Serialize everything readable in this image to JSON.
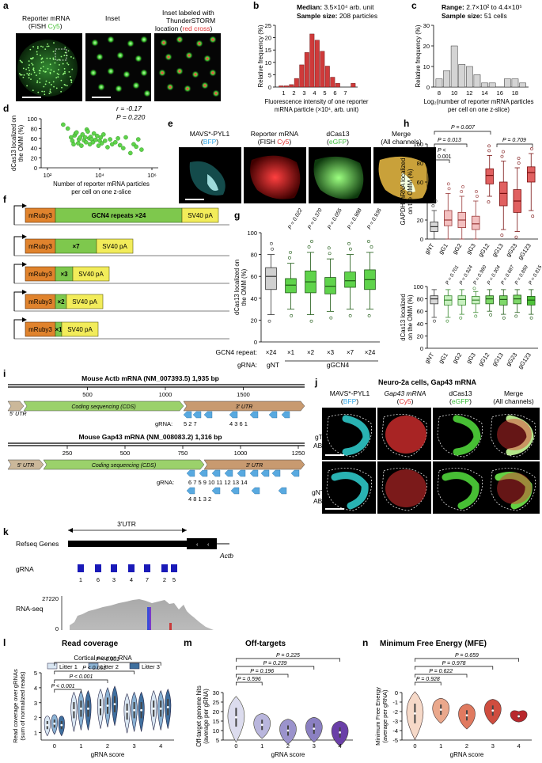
{
  "colors": {
    "red": "#cf3a3a",
    "green": "#5fd34b",
    "blue": "#1e5fa8",
    "grey": "#cfcfcf",
    "violet": "#8b62b6"
  },
  "panel_a": {
    "letter": "a",
    "title_line1": "Reporter mRNA",
    "title_line2_pre": "(FISH ",
    "title_line2_cy": "Cy5",
    "title_line2_post": ")",
    "inset": "Inset",
    "right_line1": "Inset labeled with",
    "right_line2": "ThunderSTORM",
    "right_line3_pre": "location (",
    "right_line3_red": "red cross",
    "right_line3_post": ")"
  },
  "panel_b": {
    "letter": "b",
    "median": "Median:",
    "median_value": "3.5×10⁴ arb. unit",
    "sample": "Sample size:",
    "sample_value": "208 particles"
  },
  "panel_c": {
    "letter": "c",
    "range": "Range:",
    "range_value": "2.7×10² to 4.4×10⁵",
    "sample": "Sample size:",
    "sample_value": "51 cells"
  },
  "panel_d": {
    "letter": "d",
    "r": "r = -0.17",
    "p": "P = 0.220"
  },
  "panel_e": {
    "letter": "e",
    "c1_l1": "MAVS*-PYL1",
    "c1_l2": "BFP",
    "c2_l1": "Reporter mRNA",
    "c2_l2_pre": "(FISH ",
    "c2_l2": "Cy5",
    "c3_l1": "dCas13",
    "c3_l2": "eGFP",
    "c4_l1": "Merge",
    "c4_l2": "(All channels)"
  },
  "panel_f": {
    "letter": "f",
    "mruby": "mRuby3",
    "gcn4": "GCN4 repeats ×24",
    "sv40": "SV40 pA",
    "x7": "×7",
    "x3": "×3",
    "x2": "×2",
    "x1": "×1"
  },
  "panel_g": {
    "letter": "g",
    "pvals": [
      "P = 0.022",
      "P = 0.370",
      "P = 0.055",
      "P = 0.988",
      "P = 0.936"
    ],
    "repeat_label": "GCN4 repeat:",
    "repeats": [
      "×24",
      "×1",
      "×2",
      "×3",
      "×7",
      "×24"
    ],
    "gRNA_label": "gRNA:",
    "gNT": "gNT",
    "gGCN4": "gGCN4"
  },
  "panel_h": {
    "letter": "h",
    "p_top": [
      "P = 0.007",
      "P = 0.013",
      "P <",
      "0.001",
      "P = 0.709"
    ],
    "p_bottom": [
      "P = 0.701",
      "P = 0.924",
      "P = 0.980",
      "P = 0.304",
      "P = 0.687",
      "P = 0.859",
      "P = 0.815"
    ],
    "categories": [
      "gNT",
      "gG1",
      "gG2",
      "gG3",
      "gG12",
      "gG13",
      "gG23",
      "gG123"
    ]
  },
  "panel_i": {
    "letter": "i",
    "actb_title": "Mouse Actb mRNA (NM_007393.5) 1,935 bp",
    "gap43_title": "Mouse Gap43 mRNA (NM_008083.2) 1,316 bp",
    "utr5": "5′ UTR",
    "cds": "Coding sequencing (CDS)",
    "utr3": "3′ UTR",
    "gRNA": "gRNA:",
    "actb_guides": "5 2 7 4 3 6 1",
    "gap43_row1": "6 7 5 9 10 11 12 13 14",
    "gap43_row2": "4 8 1 3 2"
  },
  "panel_j": {
    "letter": "j",
    "title": "Neuro-2a cells, Gap43 mRNA",
    "c1_l1": "MAVS*-PYL1",
    "c1_l2": "BFP",
    "c2_l1": "Gap43 mRNA",
    "c2_l2": "Cy5",
    "c3_l1": "dCas13",
    "c3_l2": "eGFP",
    "c4_l1": "Merge",
    "c4_l2": "(All channels)",
    "row1": "gT ABA",
    "row2": "gNT ABA"
  },
  "panel_k": {
    "letter": "k",
    "utr3": "3′UTR",
    "refseq": "Refseq Genes",
    "gene": "Actb",
    "gRNA": "gRNA",
    "guide_nums": [
      "1",
      "6",
      "3",
      "4",
      "7",
      "2",
      "5"
    ],
    "rnaseq": "RNA-seq",
    "max": "27220",
    "zero": "0"
  },
  "panel_l": {
    "letter": "l",
    "title": "Read coverage",
    "subtitle": "Cortical neuron RNA",
    "legend": [
      "Litter 1",
      "Litter 2",
      "Litter 3"
    ],
    "pvals": [
      "P < 0.001",
      "P < 0.001",
      "P < 0.001",
      "P < 0.001"
    ]
  },
  "panel_m": {
    "letter": "m",
    "title": "Off-targets",
    "pvals": [
      "P = 0.225",
      "P = 0.239",
      "P = 0.196",
      "P = 0.596"
    ]
  },
  "panel_n": {
    "letter": "n",
    "title": "Minimum Free Energy (MFE)",
    "pvals": [
      "P = 0.659",
      "P = 0.978",
      "P = 0.622",
      "P = 0.928"
    ]
  },
  "chart_data": [
    {
      "type": "bar",
      "xlabel": "Fluorescence intensity of one reporter mRNA particle (×10⁴, arb. unit)",
      "ylabel": "Relative frequency (%)",
      "ylim": [
        0,
        25
      ],
      "x": [
        0.5,
        1,
        1.5,
        2,
        2.5,
        3,
        3.5,
        4,
        4.5,
        5,
        5.5,
        6,
        6.5,
        7,
        7.5
      ],
      "values": [
        0.5,
        0.5,
        1,
        3.5,
        9,
        14,
        21.5,
        19,
        14.5,
        8.5,
        4,
        1.5,
        0,
        0,
        1.5
      ],
      "x_ticks": [
        "1",
        "2",
        "3",
        "4",
        "5",
        "6",
        "7"
      ],
      "y_ticks": [
        "0",
        "5",
        "10",
        "15",
        "20",
        "25"
      ]
    },
    {
      "type": "bar",
      "xlabel": "Log₂(number of reporter mRNA particles per cell on one z-slice)",
      "ylabel": "Relative frequency (%)",
      "ylim": [
        0,
        30
      ],
      "x": [
        8,
        9,
        10,
        11,
        12,
        13,
        14,
        15,
        16,
        17,
        18,
        19
      ],
      "values": [
        4,
        8,
        20,
        11,
        10,
        6,
        2,
        2,
        0,
        4,
        4,
        2
      ],
      "x_ticks": [
        "8",
        "10",
        "12",
        "14",
        "16",
        "18"
      ],
      "y_ticks": [
        "0",
        "10",
        "20",
        "30"
      ]
    },
    {
      "type": "scatter",
      "xlabel": "Number of reporter mRNA particles per cell on one z-slice",
      "ylabel": "dCas13 localized on the OMM (%)",
      "xscale": "log",
      "ylim": [
        0,
        100
      ],
      "x_ticks": [
        "10²",
        "10⁴",
        "10⁶"
      ],
      "y_ticks": [
        "0",
        "20",
        "40",
        "60",
        "80",
        "100"
      ],
      "points": [
        [
          400,
          88
        ],
        [
          600,
          80
        ],
        [
          800,
          62
        ],
        [
          900,
          55
        ],
        [
          1000,
          48
        ],
        [
          1100,
          66
        ],
        [
          1200,
          70
        ],
        [
          1300,
          72
        ],
        [
          1500,
          50
        ],
        [
          1600,
          58
        ],
        [
          1800,
          62
        ],
        [
          2000,
          45
        ],
        [
          2200,
          68
        ],
        [
          2500,
          56
        ],
        [
          2800,
          62
        ],
        [
          3000,
          52
        ],
        [
          3200,
          78
        ],
        [
          3500,
          74
        ],
        [
          4000,
          60
        ],
        [
          4200,
          48
        ],
        [
          4500,
          63
        ],
        [
          5000,
          58
        ],
        [
          5500,
          52
        ],
        [
          6000,
          70
        ],
        [
          7000,
          57
        ],
        [
          8000,
          65
        ],
        [
          9000,
          45
        ],
        [
          10000,
          55
        ],
        [
          11000,
          62
        ],
        [
          12000,
          50
        ],
        [
          14000,
          68
        ],
        [
          16000,
          55
        ],
        [
          20000,
          42
        ],
        [
          25000,
          58
        ],
        [
          30000,
          48
        ],
        [
          40000,
          52
        ],
        [
          50000,
          60
        ],
        [
          60000,
          46
        ],
        [
          80000,
          40
        ],
        [
          100000,
          62
        ],
        [
          150000,
          30
        ],
        [
          200000,
          48
        ],
        [
          250000,
          43
        ],
        [
          300000,
          58
        ],
        [
          400000,
          37
        ]
      ]
    },
    {
      "type": "box",
      "ylabel": "dCas13 localized on the OMM (%)",
      "ylim": [
        0,
        100
      ],
      "categories": [
        "gNT ×24",
        "gGCN4 ×1",
        "gGCN4 ×2",
        "gGCN4 ×3",
        "gGCN4 ×7",
        "gGCN4 ×24"
      ],
      "series": [
        {
          "q1": 48,
          "median": 60,
          "q3": 68,
          "min": 25,
          "max": 80
        },
        {
          "q1": 45,
          "median": 52,
          "q3": 58,
          "min": 30,
          "max": 72
        },
        {
          "q1": 45,
          "median": 55,
          "q3": 65,
          "min": 25,
          "max": 82
        },
        {
          "q1": 44,
          "median": 51,
          "q3": 59,
          "min": 28,
          "max": 76
        },
        {
          "q1": 50,
          "median": 56,
          "q3": 64,
          "min": 30,
          "max": 80
        },
        {
          "q1": 48,
          "median": 57,
          "q3": 66,
          "min": 30,
          "max": 82
        }
      ]
    },
    {
      "type": "box",
      "ylabel": "GAPDH mRNA localized on the OMM (%)",
      "ylim": [
        0,
        100
      ],
      "categories": [
        "gNT",
        "gG1",
        "gG2",
        "gG3",
        "gG12",
        "gG13",
        "gG23",
        "gG123"
      ],
      "series": [
        {
          "q1": 8,
          "median": 13,
          "q3": 18,
          "min": 0,
          "max": 30
        },
        {
          "q1": 14,
          "median": 20,
          "q3": 30,
          "min": 0,
          "max": 48
        },
        {
          "q1": 12,
          "median": 20,
          "q3": 28,
          "min": 0,
          "max": 45
        },
        {
          "q1": 10,
          "median": 16,
          "q3": 24,
          "min": 0,
          "max": 40
        },
        {
          "q1": 58,
          "median": 67,
          "q3": 74,
          "min": 45,
          "max": 88
        },
        {
          "q1": 35,
          "median": 48,
          "q3": 60,
          "min": 10,
          "max": 82
        },
        {
          "q1": 28,
          "median": 40,
          "q3": 52,
          "min": 8,
          "max": 75
        },
        {
          "q1": 60,
          "median": 70,
          "q3": 76,
          "min": 30,
          "max": 90
        }
      ]
    },
    {
      "type": "box",
      "ylabel": "dCas13 localized on the OMM (%)",
      "ylim": [
        0,
        100
      ],
      "categories": [
        "gNT",
        "gG1",
        "gG2",
        "gG3",
        "gG12",
        "gG13",
        "gG23",
        "gG123"
      ],
      "series": [
        {
          "q1": 72,
          "median": 80,
          "q3": 85,
          "min": 50,
          "max": 95
        },
        {
          "q1": 70,
          "median": 78,
          "q3": 85,
          "min": 50,
          "max": 95
        },
        {
          "q1": 70,
          "median": 79,
          "q3": 85,
          "min": 55,
          "max": 95
        },
        {
          "q1": 72,
          "median": 78,
          "q3": 84,
          "min": 58,
          "max": 92
        },
        {
          "q1": 72,
          "median": 80,
          "q3": 85,
          "min": 60,
          "max": 95
        },
        {
          "q1": 70,
          "median": 79,
          "q3": 85,
          "min": 55,
          "max": 95
        },
        {
          "q1": 72,
          "median": 80,
          "q3": 86,
          "min": 58,
          "max": 95
        },
        {
          "q1": 70,
          "median": 78,
          "q3": 84,
          "min": 55,
          "max": 95
        }
      ]
    },
    {
      "type": "violin",
      "xlabel": "gRNA score",
      "ylabel": "Read coverage over gRNAs (sum of normalized reads)",
      "ylim": [
        0.5,
        5
      ],
      "categories": [
        "0",
        "1",
        "2",
        "3",
        "4"
      ],
      "y_ticks": [
        "1",
        "2",
        "3",
        "4",
        "5"
      ],
      "series": [
        {
          "name": "Litter 1",
          "medians": [
            1.5,
            2.5,
            2.7,
            2.4,
            2.6
          ]
        },
        {
          "name": "Litter 2",
          "medians": [
            1.6,
            2.6,
            2.8,
            2.5,
            2.6
          ]
        },
        {
          "name": "Litter 3",
          "medians": [
            1.5,
            2.6,
            2.9,
            2.5,
            2.7
          ]
        }
      ]
    },
    {
      "type": "violin",
      "xlabel": "gRNA score",
      "ylabel": "Off-target genome hits (average per gRNA)",
      "ylim": [
        5,
        30
      ],
      "categories": [
        "0",
        "1",
        "2",
        "3",
        "4"
      ],
      "y_ticks": [
        "5",
        "10",
        "15",
        "20",
        "25",
        "30"
      ],
      "medians": [
        17,
        13,
        10,
        11,
        9
      ]
    },
    {
      "type": "violin",
      "xlabel": "gRNA score",
      "ylabel": "Minimum Free Energy (average per gRNA)",
      "ylim": [
        -5,
        0
      ],
      "categories": [
        "0",
        "1",
        "2",
        "3",
        "4"
      ],
      "y_ticks": [
        "0",
        "-1",
        "-2",
        "-3",
        "-4",
        "-5"
      ],
      "medians": [
        -2.2,
        -1.8,
        -2.4,
        -1.9,
        -2.5
      ]
    }
  ]
}
